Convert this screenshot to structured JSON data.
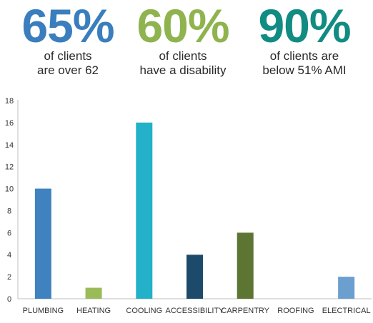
{
  "stats": [
    {
      "value": "65%",
      "line1": "of clients",
      "line2": "are over 62",
      "color": "#3a7ebd"
    },
    {
      "value": "60%",
      "line1": "of clients",
      "line2": "have a disability",
      "color": "#8fb34f"
    },
    {
      "value": "90%",
      "line1": "of clients are",
      "line2": "below 51% AMI",
      "color": "#118c83"
    }
  ],
  "chart_data": {
    "type": "bar",
    "categories": [
      "PLUMBING",
      "HEATING",
      "COOLING",
      "ACCESSIBILITY",
      "CARPENTRY",
      "ROOFING",
      "ELECTRICAL"
    ],
    "values": [
      10,
      1,
      16,
      4,
      6,
      0,
      2
    ],
    "colors": [
      "#3f82bf",
      "#9bbb59",
      "#22b1c9",
      "#1d4a6b",
      "#5d7533",
      "#cccccc",
      "#6a9fcf"
    ],
    "yticks": [
      0,
      2,
      4,
      6,
      8,
      10,
      12,
      14,
      16,
      18
    ],
    "ylim": [
      0,
      18
    ],
    "grid": false
  }
}
